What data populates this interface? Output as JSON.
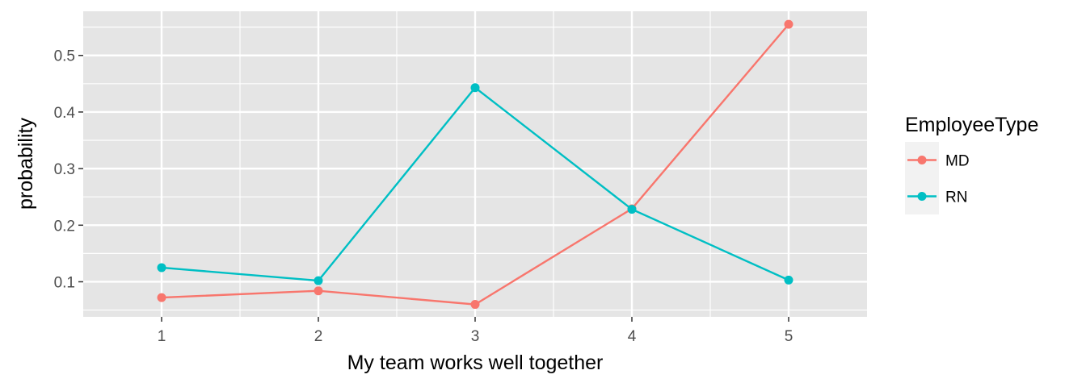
{
  "chart_data": {
    "type": "line",
    "xlabel": "My team works well together",
    "ylabel": "probability",
    "x": [
      1,
      2,
      3,
      4,
      5
    ],
    "x_ticks": [
      "1",
      "2",
      "3",
      "4",
      "5"
    ],
    "xlim": [
      0.5,
      5.5
    ],
    "y_ticks": [
      "0.1",
      "0.2",
      "0.3",
      "0.4",
      "0.5"
    ],
    "y_tick_values": [
      0.1,
      0.2,
      0.3,
      0.4,
      0.5
    ],
    "ylim": [
      0.038,
      0.578
    ],
    "grid": true,
    "legend": {
      "title": "EmployeeType",
      "position": "right"
    },
    "series": [
      {
        "name": "MD",
        "color": "#F8766D",
        "values": [
          0.072,
          0.084,
          0.06,
          0.229,
          0.555
        ]
      },
      {
        "name": "RN",
        "color": "#00BFC4",
        "values": [
          0.125,
          0.102,
          0.443,
          0.228,
          0.103
        ]
      }
    ],
    "panel_background": "#E5E5E5"
  }
}
